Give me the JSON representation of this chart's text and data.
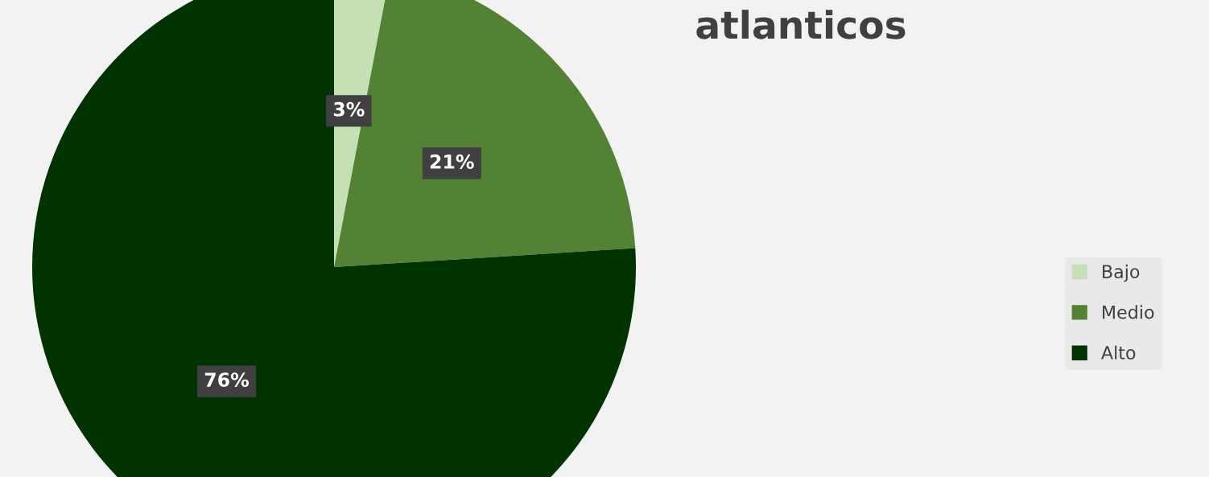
{
  "chart_data": {
    "type": "pie",
    "title": "atlanticos",
    "categories": [
      "Bajo",
      "Medio",
      "Alto"
    ],
    "values": [
      3,
      21,
      76
    ],
    "colors": [
      "#c5e0b4",
      "#548235",
      "#003300"
    ],
    "value_labels": [
      "3%",
      "21%",
      "76%"
    ],
    "legend": "right"
  }
}
